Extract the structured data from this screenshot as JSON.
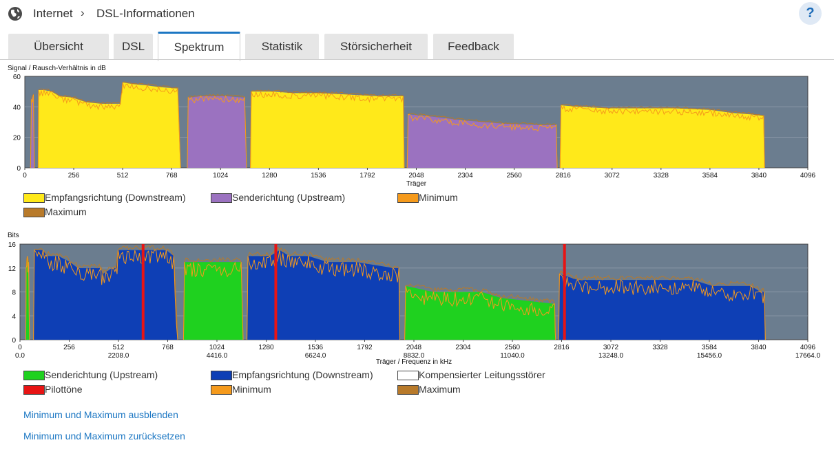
{
  "breadcrumb": {
    "section": "Internet",
    "page": "DSL-Informationen"
  },
  "help": {
    "label": "?"
  },
  "tabs": [
    "Übersicht",
    "DSL",
    "Spektrum",
    "Statistik",
    "Störsicherheit",
    "Feedback"
  ],
  "active_tab": "Spektrum",
  "colors": {
    "downstream": "#ffe91a",
    "upstream": "#9b72c0",
    "minimum": "#f59a1c",
    "maximum": "#b87a2a",
    "bits_upstream": "#1fd11f",
    "bits_downstream": "#0e3fb5",
    "pilot": "#e81414",
    "compensated": "#ffffff",
    "plot_bg": "#6b7d8f",
    "link": "#1c77c3",
    "tab_accent": "#1c77c3"
  },
  "chart_data": [
    {
      "type": "area",
      "ylabel": "Signal / Rausch-Verhältnis in dB",
      "xlabel": "Träger",
      "xlim": [
        0,
        4096
      ],
      "ylim": [
        0,
        60
      ],
      "x_ticks": [
        0,
        256,
        512,
        768,
        1024,
        1280,
        1536,
        1792,
        2048,
        2304,
        2560,
        2816,
        3072,
        3328,
        3584,
        3840,
        4096
      ],
      "y_ticks": [
        0,
        20,
        40,
        60
      ],
      "grid": true,
      "series": [
        {
          "name": "Empfangsrichtung (Downstream)",
          "segments": [
            [
              [
                70,
                0
              ],
              [
                72,
                51
              ],
              [
                100,
                51
              ],
              [
                140,
                50
              ],
              [
                180,
                47
              ],
              [
                250,
                46
              ],
              [
                320,
                43
              ],
              [
                400,
                42
              ],
              [
                500,
                42
              ],
              [
                505,
                48
              ],
              [
                512,
                56
              ],
              [
                560,
                55
              ],
              [
                640,
                54
              ],
              [
                700,
                53
              ],
              [
                800,
                52
              ],
              [
                815,
                0
              ]
            ],
            [
              [
                1180,
                0
              ],
              [
                1185,
                50
              ],
              [
                1300,
                50
              ],
              [
                1400,
                49
              ],
              [
                1536,
                49
              ],
              [
                1700,
                48
              ],
              [
                1850,
                47
              ],
              [
                1980,
                47
              ],
              [
                1985,
                0
              ]
            ],
            [
              [
                2800,
                0
              ],
              [
                2805,
                41
              ],
              [
                2900,
                40
              ],
              [
                3050,
                39
              ],
              [
                3200,
                39
              ],
              [
                3400,
                39
              ],
              [
                3584,
                38
              ],
              [
                3700,
                36
              ],
              [
                3800,
                35
              ],
              [
                3865,
                34
              ],
              [
                3870,
                0
              ]
            ]
          ]
        },
        {
          "name": "Senderichtung (Upstream)",
          "segments": [
            [
              [
                30,
                0
              ],
              [
                35,
                45
              ],
              [
                45,
                48
              ],
              [
                50,
                0
              ]
            ],
            [
              [
                850,
                0
              ],
              [
                855,
                46
              ],
              [
                920,
                47
              ],
              [
                1050,
                47
              ],
              [
                1150,
                46
              ],
              [
                1160,
                0
              ]
            ],
            [
              [
                2000,
                0
              ],
              [
                2005,
                35
              ],
              [
                2100,
                34
              ],
              [
                2300,
                31
              ],
              [
                2500,
                29
              ],
              [
                2700,
                28
              ],
              [
                2780,
                28
              ],
              [
                2785,
                0
              ]
            ]
          ]
        }
      ],
      "legend": [
        "Empfangsrichtung (Downstream)",
        "Senderichtung (Upstream)",
        "Minimum",
        "Maximum"
      ]
    },
    {
      "type": "area",
      "ylabel": "Bits",
      "xlabel": "Träger / Frequenz in kHz",
      "xlim": [
        0,
        4096
      ],
      "ylim": [
        0,
        16
      ],
      "x_ticks": [
        0,
        256,
        512,
        768,
        1024,
        1280,
        1536,
        1792,
        2048,
        2304,
        2560,
        2816,
        3072,
        3328,
        3584,
        3840,
        4096
      ],
      "x_ticks_khz": [
        "0.0",
        "2208.0",
        "4416.0",
        "6624.0",
        "8832.0",
        "11040.0",
        "13248.0",
        "15456.0",
        "17664.0"
      ],
      "y_ticks": [
        0,
        4,
        8,
        12,
        16
      ],
      "grid": true,
      "series": [
        {
          "name": "Senderichtung (Upstream)",
          "segments": [
            [
              [
                30,
                0
              ],
              [
                32,
                12
              ],
              [
                38,
                14
              ],
              [
                45,
                13
              ],
              [
                50,
                0
              ]
            ],
            [
              [
                850,
                0
              ],
              [
                855,
                13
              ],
              [
                1150,
                13
              ],
              [
                1160,
                0
              ]
            ],
            [
              [
                2000,
                0
              ],
              [
                2005,
                9
              ],
              [
                2150,
                8
              ],
              [
                2400,
                8
              ],
              [
                2500,
                7
              ],
              [
                2780,
                6
              ],
              [
                2785,
                0
              ]
            ]
          ]
        },
        {
          "name": "Empfangsrichtung (Downstream)",
          "segments": [
            [
              [
                70,
                0
              ],
              [
                75,
                15
              ],
              [
                120,
                15
              ],
              [
                140,
                14
              ],
              [
                200,
                14
              ],
              [
                260,
                13
              ],
              [
                300,
                12
              ],
              [
                420,
                12
              ],
              [
                430,
                11
              ],
              [
                480,
                12
              ],
              [
                500,
                12
              ],
              [
                510,
                15
              ],
              [
                700,
                15
              ],
              [
                760,
                15
              ],
              [
                800,
                14
              ],
              [
                820,
                0
              ]
            ],
            [
              [
                1180,
                0
              ],
              [
                1185,
                14
              ],
              [
                1300,
                14
              ],
              [
                1350,
                15
              ],
              [
                1400,
                14
              ],
              [
                1500,
                14
              ],
              [
                1600,
                13
              ],
              [
                1750,
                13
              ],
              [
                1940,
                12
              ],
              [
                1970,
                12
              ],
              [
                1975,
                0
              ]
            ],
            [
              [
                2800,
                0
              ],
              [
                2805,
                11
              ],
              [
                2900,
                10
              ],
              [
                3100,
                10
              ],
              [
                3300,
                10
              ],
              [
                3500,
                10
              ],
              [
                3600,
                9
              ],
              [
                3800,
                9
              ],
              [
                3850,
                8
              ],
              [
                3870,
                8
              ],
              [
                3875,
                0
              ]
            ]
          ]
        }
      ],
      "pilot_tones": [
        640,
        1330,
        2831
      ],
      "legend": [
        "Senderichtung (Upstream)",
        "Empfangsrichtung (Downstream)",
        "Kompensierter Leitungsstörer",
        "Pilottöne",
        "Minimum",
        "Maximum"
      ]
    }
  ],
  "links": {
    "hide_minmax": "Minimum und Maximum ausblenden",
    "reset_minmax": "Minimum und Maximum zurücksetzen"
  }
}
